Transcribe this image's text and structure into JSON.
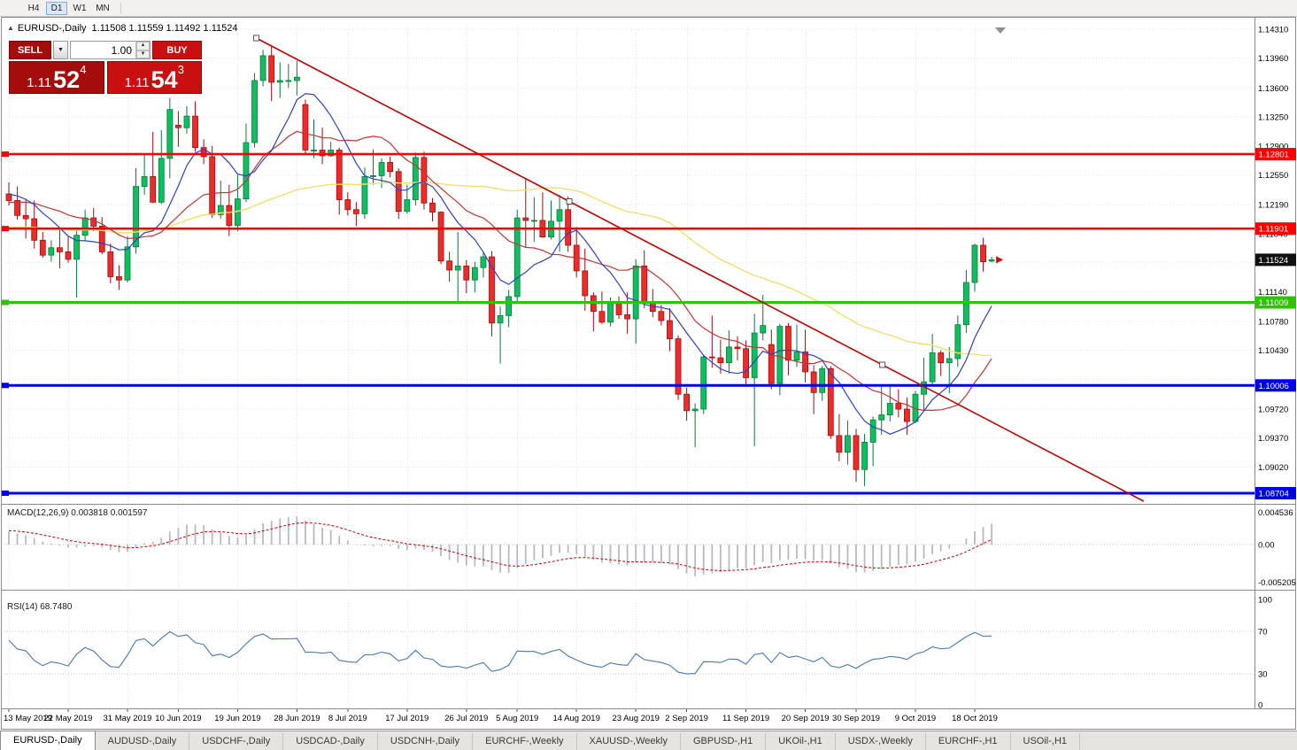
{
  "toolbar": {
    "timeframes": [
      {
        "label": "H4",
        "active": false
      },
      {
        "label": "D1",
        "active": true
      },
      {
        "label": "W1",
        "active": false
      },
      {
        "label": "MN",
        "active": false
      }
    ]
  },
  "chart": {
    "title_symbol": "EURUSD-,Daily",
    "ohlc_readout": "1.11508 1.11559 1.11492 1.11524",
    "trade_panel": {
      "sell_label": "SELL",
      "buy_label": "BUY",
      "lot_size": "1.00",
      "sell_price_main": "1.11",
      "sell_price_pips": "52",
      "sell_price_point": "4",
      "buy_price_main": "1.11",
      "buy_price_pips": "54",
      "buy_price_point": "3"
    }
  },
  "chart_data": {
    "type": "candlestick",
    "symbol": "EURUSD-",
    "period": "Daily",
    "current_ohlc": {
      "open": 1.11508,
      "high": 1.11559,
      "low": 1.11492,
      "close": 1.11524
    },
    "current_price_label": "1.11524",
    "colors": {
      "bull": "#0FBF5F",
      "bull_dark": "#077A3C",
      "bear": "#EE2B2B",
      "bear_dark": "#9E0E0E",
      "grid": "#E4E4E4",
      "border": "#8A8A8A",
      "current_box": "#111111",
      "bid_arrow": "#DD0000",
      "shift_marker": "#8F8F8F"
    },
    "grid": [
      {
        "p": 1.1431,
        "label": "1.14310"
      },
      {
        "p": 1.1396,
        "label": "1.13960"
      },
      {
        "p": 1.136,
        "label": "1.13600"
      },
      {
        "p": 1.1325,
        "label": "1.13250"
      },
      {
        "p": 1.129,
        "label": "1.12900"
      },
      {
        "p": 1.1255,
        "label": "1.12550"
      },
      {
        "p": 1.1219,
        "label": "1.12190"
      },
      {
        "p": 1.1184,
        "label": "1.11840"
      },
      {
        "p": 1.1149,
        "label": ""
      },
      {
        "p": 1.1114,
        "label": "1.11140"
      },
      {
        "p": 1.1078,
        "label": "1.10780"
      },
      {
        "p": 1.1043,
        "label": "1.10430"
      },
      {
        "p": 1.1008,
        "label": ""
      },
      {
        "p": 1.0972,
        "label": "1.09720"
      },
      {
        "p": 1.0937,
        "label": "1.09370"
      },
      {
        "p": 1.0902,
        "label": "1.09020"
      },
      {
        "p": 1.0866,
        "label": ""
      }
    ],
    "hlines": [
      {
        "price": 1.12801,
        "label": "1.12801",
        "color": "#FF0000",
        "width": 2.5
      },
      {
        "price": 1.11901,
        "label": "1.11901",
        "color": "#FF0000",
        "width": 2.5
      },
      {
        "price": 1.11009,
        "label": "1.11009",
        "color": "#2DC400",
        "width": 3
      },
      {
        "price": 1.10006,
        "label": "1.10006",
        "color": "#0000E6",
        "width": 3
      },
      {
        "price": 1.08704,
        "label": "1.08704",
        "color": "#0000E6",
        "width": 3
      }
    ],
    "trendline": {
      "i1": 29.2,
      "p1": 1.14203,
      "i2": 103.1,
      "p2": 1.10255,
      "color": "#C00000",
      "width": 1.6
    },
    "ma": {
      "fast": {
        "period": 8,
        "color": "#2E3FD1"
      },
      "mid": {
        "period": 16,
        "color": "#C43535"
      },
      "slow": {
        "period": 50,
        "color": "#EDE26E"
      }
    },
    "date_labels": [
      {
        "label": "13 May 2019",
        "i": 0
      },
      {
        "label": "22 May 2019",
        "i": 7
      },
      {
        "label": "31 May 2019",
        "i": 14
      },
      {
        "label": "10 Jun 2019",
        "i": 20
      },
      {
        "label": "19 Jun 2019",
        "i": 27
      },
      {
        "label": "28 Jun 2019",
        "i": 34
      },
      {
        "label": "8 Jul 2019",
        "i": 40
      },
      {
        "label": "17 Jul 2019",
        "i": 47
      },
      {
        "label": "26 Jul 2019",
        "i": 54
      },
      {
        "label": "5 Aug 2019",
        "i": 60
      },
      {
        "label": "14 Aug 2019",
        "i": 67
      },
      {
        "label": "23 Aug 2019",
        "i": 74
      },
      {
        "label": "2 Sep 2019",
        "i": 80
      },
      {
        "label": "11 Sep 2019",
        "i": 87
      },
      {
        "label": "20 Sep 2019",
        "i": 94
      },
      {
        "label": "30 Sep 2019",
        "i": 100
      },
      {
        "label": "9 Oct 2019",
        "i": 107
      },
      {
        "label": "18 Oct 2019",
        "i": 114
      }
    ],
    "warmup_closes": [
      1.1128,
      1.1135,
      1.1121,
      1.1142,
      1.115,
      1.1147,
      1.1162,
      1.1155,
      1.117,
      1.1166,
      1.1178,
      1.1172,
      1.1185,
      1.119,
      1.1183,
      1.1196,
      1.1205,
      1.1198,
      1.1212,
      1.1218,
      1.121,
      1.1224,
      1.123,
      1.1222,
      1.1235,
      1.1228,
      1.124,
      1.1232,
      1.1238,
      1.1234
    ],
    "candles": [
      [
        1.1232,
        1.1246,
        1.1218,
        1.1224
      ],
      [
        1.1224,
        1.1241,
        1.1201,
        1.1206
      ],
      [
        1.1206,
        1.1226,
        1.1178,
        1.1202
      ],
      [
        1.1202,
        1.1224,
        1.1166,
        1.1176
      ],
      [
        1.1176,
        1.1186,
        1.1155,
        1.1158
      ],
      [
        1.1158,
        1.1176,
        1.115,
        1.1167
      ],
      [
        1.1167,
        1.1188,
        1.1142,
        1.1162
      ],
      [
        1.1162,
        1.118,
        1.1149,
        1.1153
      ],
      [
        1.1153,
        1.1188,
        1.1107,
        1.1182
      ],
      [
        1.1182,
        1.1213,
        1.1175,
        1.1203
      ],
      [
        1.1203,
        1.1215,
        1.1187,
        1.1193
      ],
      [
        1.1193,
        1.1204,
        1.1159,
        1.1162
      ],
      [
        1.1162,
        1.1172,
        1.1124,
        1.1132
      ],
      [
        1.1132,
        1.1146,
        1.1116,
        1.1128
      ],
      [
        1.1128,
        1.1181,
        1.1125,
        1.1168
      ],
      [
        1.1168,
        1.1263,
        1.116,
        1.1241
      ],
      [
        1.1241,
        1.128,
        1.1231,
        1.1253
      ],
      [
        1.1253,
        1.1307,
        1.1221,
        1.1222
      ],
      [
        1.1222,
        1.1309,
        1.122,
        1.1275
      ],
      [
        1.1275,
        1.1348,
        1.1251,
        1.1334
      ],
      [
        1.1315,
        1.1332,
        1.1289,
        1.1312
      ],
      [
        1.1312,
        1.1338,
        1.1305,
        1.1326
      ],
      [
        1.1326,
        1.1344,
        1.1283,
        1.1288
      ],
      [
        1.1288,
        1.1298,
        1.1268,
        1.1277
      ],
      [
        1.1277,
        1.129,
        1.1203,
        1.1207
      ],
      [
        1.1207,
        1.1248,
        1.1202,
        1.1218
      ],
      [
        1.1218,
        1.1243,
        1.1181,
        1.1194
      ],
      [
        1.1194,
        1.1255,
        1.1187,
        1.1226
      ],
      [
        1.1226,
        1.1317,
        1.1222,
        1.1294
      ],
      [
        1.1294,
        1.1378,
        1.1288,
        1.1369
      ],
      [
        1.1369,
        1.1406,
        1.1362,
        1.1399
      ],
      [
        1.1399,
        1.1412,
        1.1344,
        1.1367
      ],
      [
        1.1367,
        1.1391,
        1.1348,
        1.1369
      ],
      [
        1.1369,
        1.1389,
        1.136,
        1.1369
      ],
      [
        1.1369,
        1.1393,
        1.1351,
        1.1373
      ],
      [
        1.134,
        1.1346,
        1.1281,
        1.1285
      ],
      [
        1.1285,
        1.1322,
        1.1275,
        1.1285
      ],
      [
        1.1285,
        1.1312,
        1.1268,
        1.1278
      ],
      [
        1.1278,
        1.1295,
        1.1277,
        1.1285
      ],
      [
        1.1285,
        1.1288,
        1.1207,
        1.1225
      ],
      [
        1.1225,
        1.1234,
        1.1206,
        1.1213
      ],
      [
        1.1213,
        1.1222,
        1.1193,
        1.1208
      ],
      [
        1.1208,
        1.1264,
        1.1202,
        1.1253
      ],
      [
        1.1253,
        1.1286,
        1.1243,
        1.1254
      ],
      [
        1.1254,
        1.1275,
        1.1239,
        1.127
      ],
      [
        1.127,
        1.1277,
        1.1252,
        1.1259
      ],
      [
        1.1259,
        1.1263,
        1.1202,
        1.1211
      ],
      [
        1.1211,
        1.1243,
        1.1208,
        1.1225
      ],
      [
        1.1225,
        1.1282,
        1.1218,
        1.1276
      ],
      [
        1.1276,
        1.1283,
        1.1213,
        1.1221
      ],
      [
        1.1221,
        1.1227,
        1.1199,
        1.121
      ],
      [
        1.121,
        1.1211,
        1.1147,
        1.1151
      ],
      [
        1.1151,
        1.1162,
        1.1126,
        1.114
      ],
      [
        1.114,
        1.1186,
        1.1101,
        1.1145
      ],
      [
        1.1145,
        1.1152,
        1.1112,
        1.1128
      ],
      [
        1.1128,
        1.115,
        1.1113,
        1.1143
      ],
      [
        1.1143,
        1.1162,
        1.1131,
        1.1156
      ],
      [
        1.1156,
        1.1163,
        1.106,
        1.1076
      ],
      [
        1.1076,
        1.1096,
        1.1027,
        1.1085
      ],
      [
        1.1085,
        1.1116,
        1.1071,
        1.1108
      ],
      [
        1.1108,
        1.1213,
        1.1102,
        1.1203
      ],
      [
        1.1203,
        1.125,
        1.1167,
        1.12
      ],
      [
        1.12,
        1.1228,
        1.1174,
        1.12
      ],
      [
        1.12,
        1.1234,
        1.1179,
        1.118
      ],
      [
        1.118,
        1.1224,
        1.1177,
        1.1199
      ],
      [
        1.1199,
        1.1231,
        1.1162,
        1.1213
      ],
      [
        1.1213,
        1.1229,
        1.1162,
        1.117
      ],
      [
        1.117,
        1.1192,
        1.1131,
        1.1139
      ],
      [
        1.1139,
        1.1166,
        1.1091,
        1.1109
      ],
      [
        1.1109,
        1.1113,
        1.1066,
        1.109
      ],
      [
        1.109,
        1.1114,
        1.1075,
        1.1077
      ],
      [
        1.1077,
        1.1107,
        1.1072,
        1.11
      ],
      [
        1.11,
        1.1108,
        1.1081,
        1.1086
      ],
      [
        1.1086,
        1.1113,
        1.1063,
        1.1081
      ],
      [
        1.1081,
        1.1153,
        1.1051,
        1.1145
      ],
      [
        1.1145,
        1.1164,
        1.1094,
        1.1101
      ],
      [
        1.1101,
        1.1117,
        1.1083,
        1.109
      ],
      [
        1.109,
        1.1098,
        1.1073,
        1.1079
      ],
      [
        1.1079,
        1.1094,
        1.1042,
        1.1057
      ],
      [
        1.1057,
        1.1061,
        1.0983,
        1.099
      ],
      [
        1.099,
        1.0998,
        1.0958,
        1.097
      ],
      [
        1.097,
        1.0979,
        1.0926,
        1.0972
      ],
      [
        1.0972,
        1.1038,
        1.0966,
        1.1035
      ],
      [
        1.1035,
        1.1085,
        1.1022,
        1.1034
      ],
      [
        1.1034,
        1.1056,
        1.1015,
        1.1028
      ],
      [
        1.1028,
        1.1067,
        1.1015,
        1.1047
      ],
      [
        1.1047,
        1.106,
        1.1031,
        1.1045
      ],
      [
        1.1045,
        1.1055,
        1.0999,
        1.101
      ],
      [
        1.101,
        1.1087,
        1.0927,
        1.1064
      ],
      [
        1.1064,
        1.111,
        1.1055,
        1.1073
      ],
      [
        1.105,
        1.1068,
        1.0996,
        1.1003
      ],
      [
        1.1003,
        1.1075,
        1.0989,
        1.1072
      ],
      [
        1.1072,
        1.1076,
        1.1013,
        1.1031
      ],
      [
        1.1031,
        1.1074,
        1.1023,
        1.1041
      ],
      [
        1.1041,
        1.1068,
        1.1004,
        1.1017
      ],
      [
        1.1017,
        1.1025,
        1.0966,
        1.0992
      ],
      [
        1.0992,
        1.1024,
        1.0982,
        1.1021
      ],
      [
        1.1021,
        1.1024,
        1.0936,
        1.094
      ],
      [
        1.094,
        1.0966,
        1.0909,
        1.092
      ],
      [
        1.092,
        1.0958,
        1.0905,
        1.094
      ],
      [
        1.094,
        1.0948,
        1.0884,
        1.0899
      ],
      [
        1.0899,
        1.0942,
        1.0879,
        1.0932
      ],
      [
        1.0932,
        1.0963,
        1.0903,
        1.0959
      ],
      [
        1.0959,
        1.0999,
        1.0941,
        1.0965
      ],
      [
        1.0965,
        1.0999,
        1.0957,
        1.0979
      ],
      [
        1.0979,
        1.0996,
        1.0962,
        1.0972
      ],
      [
        1.0972,
        1.0986,
        1.0941,
        1.0957
      ],
      [
        1.0957,
        1.0994,
        1.0955,
        1.099
      ],
      [
        1.099,
        1.1034,
        1.0971,
        1.1005
      ],
      [
        1.1005,
        1.1063,
        1.1002,
        1.104
      ],
      [
        1.104,
        1.1043,
        1.1012,
        1.1028
      ],
      [
        1.1028,
        1.1047,
        1.0991,
        1.1033
      ],
      [
        1.1033,
        1.1085,
        1.1023,
        1.1074
      ],
      [
        1.1074,
        1.114,
        1.1064,
        1.1125
      ],
      [
        1.1125,
        1.1172,
        1.1114,
        1.117
      ],
      [
        1.117,
        1.1179,
        1.1138,
        1.115
      ],
      [
        1.11508,
        1.11559,
        1.11492,
        1.11524
      ]
    ],
    "macd": {
      "label": "MACD(12,26,9)",
      "value_main": "0.003818",
      "value_signal": "0.001597",
      "fast": 12,
      "slow": 26,
      "signal": 9,
      "axis_max": "0.004536",
      "axis_zero": "0.00",
      "axis_min": "-0.005205",
      "hist_color": "#B9B9C5",
      "signal_color": "#CC0000"
    },
    "rsi": {
      "label": "RSI(14)",
      "value": "68.7480",
      "period": 14,
      "color": "#4878B4",
      "levels": [
        70,
        30
      ],
      "axis": [
        "100",
        "70",
        "30",
        "0"
      ]
    }
  },
  "tabs": [
    {
      "label": "EURUSD-,Daily",
      "active": true
    },
    {
      "label": "AUDUSD-,Daily",
      "active": false
    },
    {
      "label": "USDCHF-,Daily",
      "active": false
    },
    {
      "label": "USDCAD-,Daily",
      "active": false
    },
    {
      "label": "USDCNH-,Daily",
      "active": false
    },
    {
      "label": "EURCHF-,Weekly",
      "active": false
    },
    {
      "label": "XAUUSD-,Weekly",
      "active": false
    },
    {
      "label": "GBPUSD-,H1",
      "active": false
    },
    {
      "label": "UKOil-,H1",
      "active": false
    },
    {
      "label": "USDX-,Weekly",
      "active": false
    },
    {
      "label": "EURCHF-,H1",
      "active": false
    },
    {
      "label": "USOil-,H1",
      "active": false
    }
  ]
}
